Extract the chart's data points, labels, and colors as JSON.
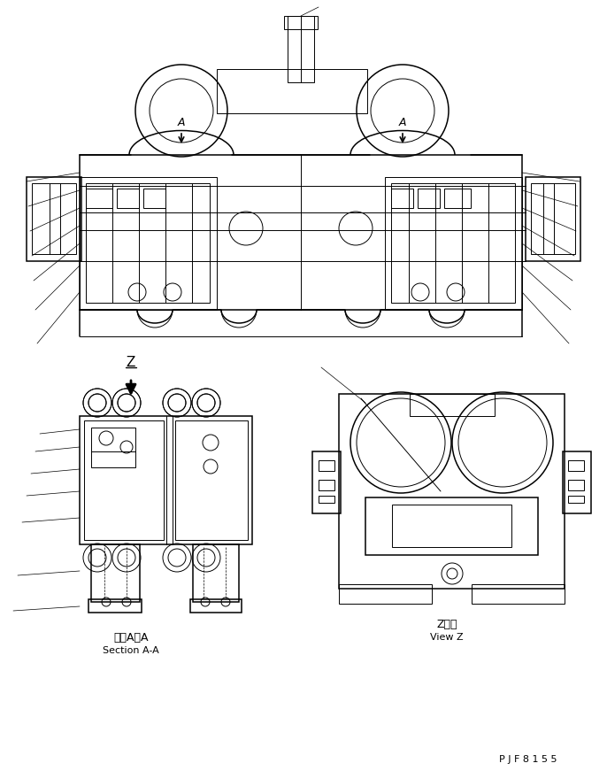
{
  "bg_color": "#ffffff",
  "line_color": "#000000",
  "fig_width": 6.86,
  "fig_height": 8.71,
  "dpi": 100,
  "part_id": "P J F 8 1 5 5",
  "label_section_aa_ja": "断面A－A",
  "label_section_aa_en": "Section A-A",
  "label_view_z_ja": "Z　視",
  "label_view_z_en": "View Z"
}
